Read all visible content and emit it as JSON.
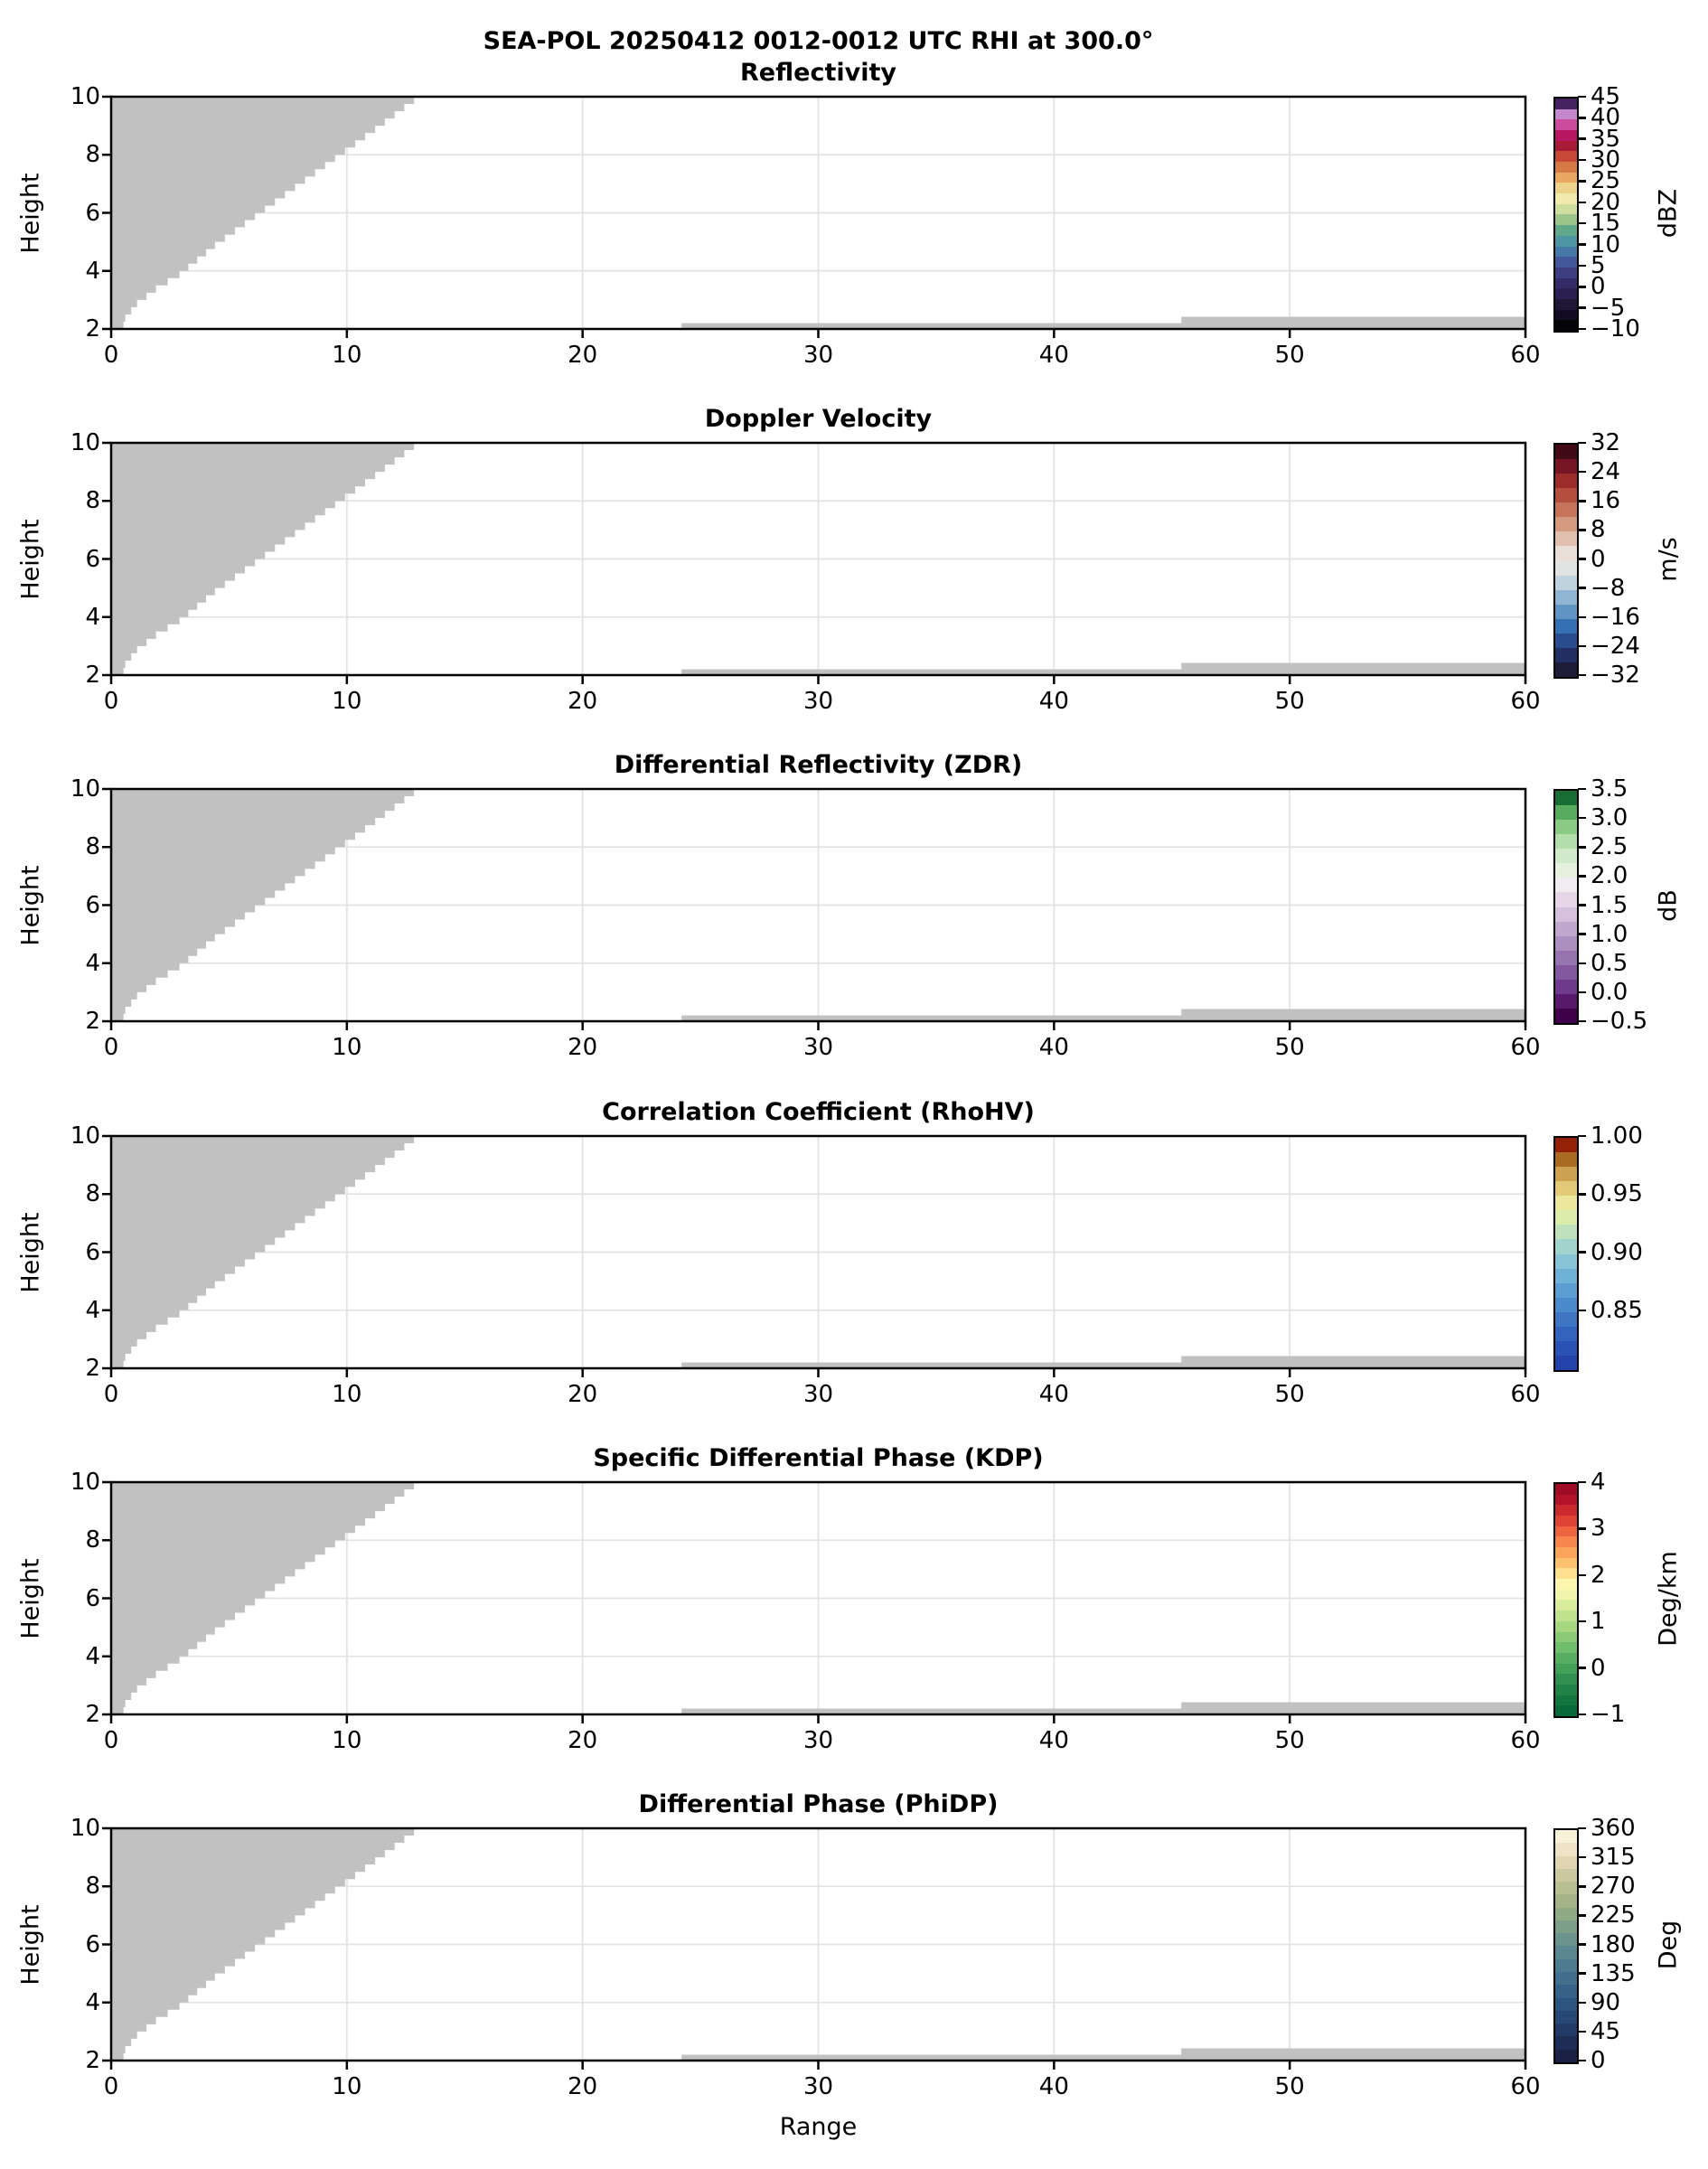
{
  "suptitle": "SEA-POL 20250412 0012-0012 UTC RHI at 300.0°",
  "chart_data": {
    "type": "heatmap",
    "subtype": "radar-RHI-multipanel",
    "xlabel": "Range",
    "ylabel": "Height",
    "xlim": [
      0,
      60
    ],
    "ylim": [
      2,
      10
    ],
    "x_ticks": [
      0,
      10,
      20,
      30,
      40,
      50,
      60
    ],
    "y_ticks": [
      2,
      4,
      6,
      8,
      10
    ],
    "grid": true,
    "grid_x": [
      10,
      20,
      30,
      40,
      50
    ],
    "grid_y": [
      4,
      6,
      8
    ],
    "grid_color": "#e3e3e3",
    "masked_color": "#c1c1c1",
    "masked_region": {
      "note": "gray = masked / no-echo data, identical in all six panels",
      "wedge_boundary": [
        [
          0.45,
          2
        ],
        [
          0.6,
          2.5
        ],
        [
          1.1,
          3
        ],
        [
          1.9,
          3.5
        ],
        [
          2.9,
          4
        ],
        [
          4.4,
          5
        ],
        [
          6.1,
          6
        ],
        [
          7.8,
          7
        ],
        [
          9.5,
          8
        ],
        [
          11.2,
          9
        ],
        [
          12.85,
          10
        ]
      ],
      "step_height": 0.25,
      "strips": [
        {
          "x0": 24.2,
          "x1": 60,
          "y0": 2,
          "y1": 2.2
        },
        {
          "x0": 45.4,
          "x1": 60,
          "y0": 2,
          "y1": 2.42
        }
      ]
    },
    "panels": [
      {
        "title": "Reflectivity",
        "colorbar": {
          "unit": "dBZ",
          "range": [
            -10,
            45
          ],
          "ticks": [
            {
              "v": 45,
              "t": "45"
            },
            {
              "v": 40,
              "t": "40"
            },
            {
              "v": 35,
              "t": "35"
            },
            {
              "v": 30,
              "t": "30"
            },
            {
              "v": 25,
              "t": "25"
            },
            {
              "v": 20,
              "t": "20"
            },
            {
              "v": 15,
              "t": "15"
            },
            {
              "v": 10,
              "t": "10"
            },
            {
              "v": 5,
              "t": "5"
            },
            {
              "v": 0,
              "t": "0"
            },
            {
              "v": -5,
              "t": "−5"
            },
            {
              "v": -10,
              "t": "−10"
            }
          ],
          "colors": [
            "#040308",
            "#120c22",
            "#1f1638",
            "#2b2051",
            "#352b68",
            "#3d3e81",
            "#42589b",
            "#4878a8",
            "#4e94a2",
            "#62a98c",
            "#9cc48b",
            "#cede9e",
            "#f0eaad",
            "#edd28b",
            "#e8a763",
            "#d67a45",
            "#c54936",
            "#a81a38",
            "#b51860",
            "#cc4b9c",
            "#c488cc",
            "#45215f"
          ]
        }
      },
      {
        "title": "Doppler Velocity",
        "colorbar": {
          "unit": "m/s",
          "range": [
            -32,
            32
          ],
          "ticks": [
            {
              "v": 32,
              "t": "32"
            },
            {
              "v": 24,
              "t": "24"
            },
            {
              "v": 16,
              "t": "16"
            },
            {
              "v": 8,
              "t": "8"
            },
            {
              "v": 0,
              "t": "0"
            },
            {
              "v": -8,
              "t": "−8"
            },
            {
              "v": -16,
              "t": "−16"
            },
            {
              "v": -24,
              "t": "−24"
            },
            {
              "v": -32,
              "t": "−32"
            }
          ],
          "colors": [
            "#1d1d39",
            "#232e62",
            "#2a4c8e",
            "#3470b2",
            "#5f94c3",
            "#90b5d2",
            "#bfd2dd",
            "#e2e3e3",
            "#e9dfd8",
            "#e0bfae",
            "#d49a80",
            "#c57459",
            "#b44e3d",
            "#9b2c29",
            "#751523",
            "#420a17"
          ]
        }
      },
      {
        "title": "Differential Reflectivity (ZDR)",
        "colorbar": {
          "unit": "dB",
          "range": [
            -0.5,
            3.5
          ],
          "ticks": [
            {
              "v": 3.5,
              "t": "3.5"
            },
            {
              "v": 3.0,
              "t": "3.0"
            },
            {
              "v": 2.5,
              "t": "2.5"
            },
            {
              "v": 2.0,
              "t": "2.0"
            },
            {
              "v": 1.5,
              "t": "1.5"
            },
            {
              "v": 1.0,
              "t": "1.0"
            },
            {
              "v": 0.5,
              "t": "0.5"
            },
            {
              "v": 0.0,
              "t": "0.0"
            },
            {
              "v": -0.5,
              "t": "−0.5"
            }
          ],
          "colors": [
            "#40004b",
            "#581a6b",
            "#6f3a8c",
            "#84589f",
            "#9874ae",
            "#ab8fbf",
            "#c0a7ce",
            "#d5c1dc",
            "#e5d5e6",
            "#f0ecef",
            "#e6f1df",
            "#d0eacb",
            "#b3ddab",
            "#8aca84",
            "#58ab5e",
            "#176d33"
          ]
        }
      },
      {
        "title": "Correlation Coefficient (RhoHV)",
        "colorbar": {
          "unit": "",
          "range": [
            0.8,
            1.0
          ],
          "ticks": [
            {
              "v": 1.0,
              "t": "1.00"
            },
            {
              "v": 0.95,
              "t": "0.95"
            },
            {
              "v": 0.9,
              "t": "0.90"
            },
            {
              "v": 0.85,
              "t": "0.85"
            }
          ],
          "colors": [
            "#2342aa",
            "#2a52b5",
            "#3363bd",
            "#3e76c4",
            "#4b8acb",
            "#5c9ed1",
            "#70b2d6",
            "#87c4d6",
            "#a1d4cd",
            "#bfe2bc",
            "#dcecab",
            "#ebe79c",
            "#e2ca79",
            "#cda250",
            "#a96a22",
            "#922106"
          ]
        }
      },
      {
        "title": "Specific Differential Phase (KDP)",
        "colorbar": {
          "unit": "Deg/km",
          "range": [
            -1,
            4
          ],
          "ticks": [
            {
              "v": 4,
              "t": "4"
            },
            {
              "v": 3,
              "t": "3"
            },
            {
              "v": 2,
              "t": "2"
            },
            {
              "v": 1,
              "t": "1"
            },
            {
              "v": 0,
              "t": "0"
            },
            {
              "v": -1,
              "t": "−1"
            }
          ],
          "colors": [
            "#08693a",
            "#137540",
            "#218247",
            "#31904f",
            "#42a058",
            "#57ae62",
            "#70bd6b",
            "#8aca75",
            "#a5d680",
            "#c0e18d",
            "#d9ec9c",
            "#f0f6ad",
            "#fdf5b0",
            "#fee090",
            "#fdc170",
            "#fba45c",
            "#f8864c",
            "#ef6440",
            "#df4336",
            "#cb292f",
            "#b31329",
            "#a00b26"
          ]
        }
      },
      {
        "title": "Differential Phase (PhiDP)",
        "colorbar": {
          "unit": "Deg",
          "range": [
            0,
            360
          ],
          "ticks": [
            {
              "v": 360,
              "t": "360"
            },
            {
              "v": 315,
              "t": "315"
            },
            {
              "v": 270,
              "t": "270"
            },
            {
              "v": 225,
              "t": "225"
            },
            {
              "v": 180,
              "t": "180"
            },
            {
              "v": 135,
              "t": "135"
            },
            {
              "v": 90,
              "t": "90"
            },
            {
              "v": 45,
              "t": "45"
            },
            {
              "v": 0,
              "t": "0"
            }
          ],
          "colors": [
            "#1a2145",
            "#1e2d56",
            "#223a66",
            "#274874",
            "#2e5580",
            "#376287",
            "#416f8d",
            "#4d7c90",
            "#5b8890",
            "#6b948e",
            "#7d9f89",
            "#90aa85",
            "#a4b488",
            "#b8bf92",
            "#ccc9a0",
            "#dfd5b2",
            "#eee3c6",
            "#f9f2da"
          ]
        }
      }
    ]
  }
}
